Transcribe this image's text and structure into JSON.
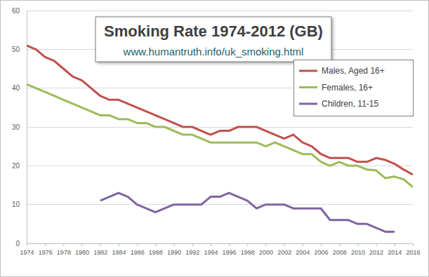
{
  "chart_data": {
    "type": "line",
    "title": "Smoking Rate 1974-2012 (GB)",
    "subtitle": "www.humantruth.info/uk_smoking.html",
    "x": [
      1974,
      1975,
      1976,
      1977,
      1978,
      1979,
      1980,
      1981,
      1982,
      1983,
      1984,
      1985,
      1986,
      1987,
      1988,
      1989,
      1990,
      1991,
      1992,
      1993,
      1994,
      1995,
      1996,
      1997,
      1998,
      1999,
      2000,
      2001,
      2002,
      2003,
      2004,
      2005,
      2006,
      2007,
      2008,
      2009,
      2010,
      2011,
      2012,
      2013,
      2014,
      2015,
      2016
    ],
    "series": [
      {
        "name": "Males, Aged 16+",
        "color": "#c0504d",
        "values": [
          51,
          50,
          48,
          47,
          45,
          43,
          42,
          40,
          38,
          37,
          37,
          36,
          35,
          34,
          33,
          32,
          31,
          30,
          30,
          29,
          28,
          29,
          29,
          30,
          30,
          30,
          29,
          28,
          27,
          28,
          26,
          25,
          23,
          22,
          22,
          22,
          21,
          21,
          22,
          21.5,
          20.5,
          19,
          17.7
        ]
      },
      {
        "name": "Females, 16+",
        "color": "#9bbb59",
        "values": [
          41,
          40,
          39,
          38,
          37,
          36,
          35,
          34,
          33,
          33,
          32,
          32,
          31,
          31,
          30,
          30,
          29,
          28,
          28,
          27,
          26,
          26,
          26,
          26,
          26,
          26,
          25,
          26,
          25,
          24,
          23,
          23,
          21,
          20,
          21,
          20,
          20,
          19,
          18.8,
          16.8,
          17.2,
          16.5,
          14.5
        ]
      },
      {
        "name": "Children, 11-15",
        "color": "#8064a2",
        "values": [
          null,
          null,
          null,
          null,
          null,
          null,
          null,
          null,
          11,
          12,
          13,
          12,
          10,
          9,
          8,
          9,
          10,
          10,
          10,
          10,
          12,
          12,
          13,
          12,
          11,
          9,
          10,
          10,
          10,
          9,
          9,
          9,
          9,
          6,
          6,
          6,
          5,
          5,
          4,
          3,
          3,
          null,
          null
        ]
      }
    ],
    "xlim": [
      1974,
      2016
    ],
    "xticks": [
      1974,
      1976,
      1978,
      1980,
      1982,
      1984,
      1986,
      1988,
      1990,
      1992,
      1994,
      1996,
      1998,
      2000,
      2002,
      2004,
      2006,
      2008,
      2010,
      2012,
      2014,
      2016
    ],
    "ylim": [
      0,
      60
    ],
    "yticks": [
      0,
      10,
      20,
      30,
      40,
      50,
      60
    ],
    "grid": true,
    "legend": "top-right"
  }
}
